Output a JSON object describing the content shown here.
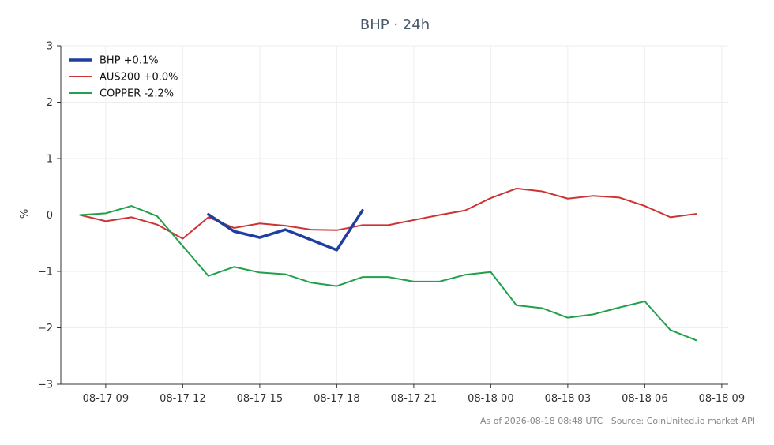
{
  "chart_data": {
    "type": "line",
    "title": "BHP · 24h",
    "ylabel": "%",
    "xlabel": "",
    "ylim": [
      -3,
      3
    ],
    "xlim": [
      "08-17 07:15",
      "08-18 09:15"
    ],
    "yticks": [
      -3,
      -2,
      -1,
      0,
      1,
      2,
      3
    ],
    "xticks": [
      "08-17 09",
      "08-17 12",
      "08-17 15",
      "08-17 18",
      "08-17 21",
      "08-18 00",
      "08-18 03",
      "08-18 06",
      "08-18 09"
    ],
    "grid": true,
    "zero_line": true,
    "legend_position": "top-left",
    "series": [
      {
        "name": "BHP +0.1%",
        "color": "#1f3fa0",
        "x": [
          "08-17 13:00",
          "08-17 14:00",
          "08-17 15:00",
          "08-17 16:00",
          "08-17 17:00",
          "08-17 18:00",
          "08-17 19:00"
        ],
        "values": [
          0.01,
          -0.29,
          -0.4,
          -0.26,
          -0.44,
          -0.62,
          0.08
        ]
      },
      {
        "name": "AUS200 +0.0%",
        "color": "#cc3333",
        "x": [
          "08-17 08:00",
          "08-17 09:00",
          "08-17 10:00",
          "08-17 11:00",
          "08-17 12:00",
          "08-17 13:00",
          "08-17 14:00",
          "08-17 15:00",
          "08-17 16:00",
          "08-17 17:00",
          "08-17 18:00",
          "08-17 19:00",
          "08-17 20:00",
          "08-17 21:00",
          "08-17 22:00",
          "08-17 23:00",
          "08-18 00:00",
          "08-18 01:00",
          "08-18 02:00",
          "08-18 03:00",
          "08-18 04:00",
          "08-18 05:00",
          "08-18 06:00",
          "08-18 07:00",
          "08-18 08:00"
        ],
        "values": [
          0.0,
          -0.11,
          -0.04,
          -0.17,
          -0.42,
          -0.04,
          -0.23,
          -0.15,
          -0.19,
          -0.26,
          -0.27,
          -0.18,
          -0.18,
          -0.09,
          0.0,
          0.08,
          0.3,
          0.47,
          0.42,
          0.29,
          0.34,
          0.31,
          0.16,
          -0.04,
          0.02
        ]
      },
      {
        "name": "COPPER -2.2%",
        "color": "#22a04b",
        "x": [
          "08-17 08:00",
          "08-17 09:00",
          "08-17 10:00",
          "08-17 11:00",
          "08-17 12:00",
          "08-17 13:00",
          "08-17 14:00",
          "08-17 15:00",
          "08-17 16:00",
          "08-17 17:00",
          "08-17 18:00",
          "08-17 19:00",
          "08-17 20:00",
          "08-17 21:00",
          "08-17 22:00",
          "08-17 23:00",
          "08-18 00:00",
          "08-18 01:00",
          "08-18 02:00",
          "08-18 03:00",
          "08-18 04:00",
          "08-18 05:00",
          "08-18 06:00",
          "08-18 07:00",
          "08-18 08:00"
        ],
        "values": [
          0.0,
          0.03,
          0.16,
          -0.02,
          -0.55,
          -1.08,
          -0.92,
          -1.02,
          -1.05,
          -1.2,
          -1.26,
          -1.1,
          -1.1,
          -1.18,
          -1.18,
          -1.06,
          -1.01,
          -1.6,
          -1.65,
          -1.82,
          -1.76,
          -1.64,
          -1.53,
          -2.04,
          -2.22
        ]
      }
    ]
  },
  "footer": "As of 2026-08-18 08:48 UTC · Source: CoinUnited.io market API",
  "colors": {
    "axis": "#333333",
    "grid": "#eeeeee",
    "zero_line": "#7a8fa6"
  }
}
